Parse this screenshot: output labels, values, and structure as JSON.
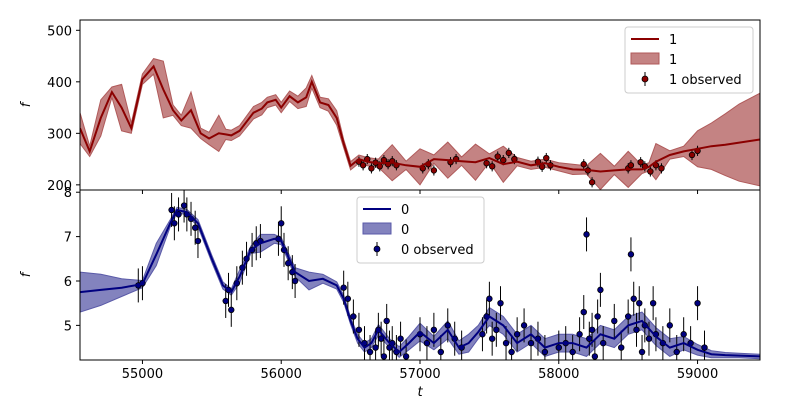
{
  "chart_data": [
    {
      "type": "line",
      "ylabel": "f",
      "xlim": [
        54550,
        59450
      ],
      "ylim": [
        190,
        520
      ],
      "yticks": [
        200,
        300,
        400,
        500
      ],
      "color": "#8b0000",
      "band_color": "#b05a5a",
      "legend": {
        "placement": "top-right",
        "entries": [
          {
            "kind": "line",
            "label": "1"
          },
          {
            "kind": "band",
            "label": "1"
          },
          {
            "kind": "points",
            "label": "1 observed"
          }
        ]
      },
      "model": {
        "x": [
          54550,
          54620,
          54700,
          54780,
          54850,
          54920,
          55000,
          55080,
          55150,
          55220,
          55280,
          55350,
          55420,
          55480,
          55550,
          55600,
          55640,
          55700,
          55800,
          55860,
          55900,
          55960,
          56000,
          56060,
          56120,
          56180,
          56220,
          56280,
          56340,
          56400,
          56450,
          56500,
          56560,
          56620,
          56700,
          56800,
          56900,
          57000,
          57100,
          57200,
          57300,
          57400,
          57500,
          57600,
          57700,
          57800,
          57900,
          58000,
          58100,
          58200,
          58300,
          58400,
          58500,
          58600,
          58650,
          58700,
          58800,
          58900,
          59000,
          59100,
          59200,
          59300,
          59450
        ],
        "y": [
          310,
          265,
          330,
          380,
          350,
          310,
          405,
          430,
          385,
          345,
          325,
          345,
          300,
          290,
          300,
          298,
          296,
          305,
          340,
          348,
          360,
          365,
          350,
          372,
          360,
          370,
          400,
          360,
          355,
          330,
          280,
          237,
          250,
          245,
          242,
          243,
          238,
          235,
          250,
          248,
          246,
          244,
          252,
          240,
          245,
          238,
          242,
          235,
          230,
          229,
          226,
          228,
          230,
          230,
          235,
          245,
          258,
          265,
          270,
          275,
          278,
          282,
          288
        ],
        "band_halfwidth": [
          30,
          10,
          35,
          10,
          45,
          10,
          10,
          15,
          55,
          10,
          10,
          35,
          10,
          12,
          35,
          10,
          10,
          10,
          12,
          12,
          10,
          10,
          10,
          10,
          12,
          18,
          12,
          10,
          12,
          14,
          8,
          8,
          8,
          8,
          8,
          35,
          8,
          35,
          8,
          35,
          8,
          35,
          8,
          35,
          8,
          8,
          8,
          8,
          10,
          8,
          35,
          8,
          35,
          8,
          8,
          35,
          8,
          10,
          35,
          45,
          60,
          75,
          90
        ]
      },
      "observed": {
        "x": [
          56560,
          56590,
          56620,
          56650,
          56680,
          56710,
          56740,
          56770,
          56800,
          56830,
          57020,
          57060,
          57100,
          57220,
          57260,
          57480,
          57520,
          57560,
          57600,
          57640,
          57680,
          57850,
          57880,
          57910,
          57940,
          58180,
          58210,
          58240,
          58500,
          58520,
          58590,
          58620,
          58660,
          58700,
          58740,
          58960,
          59000
        ],
        "y": [
          245,
          238,
          250,
          232,
          243,
          236,
          248,
          240,
          246,
          238,
          232,
          240,
          228,
          244,
          250,
          242,
          236,
          255,
          248,
          262,
          250,
          245,
          235,
          252,
          238,
          240,
          228,
          205,
          232,
          238,
          244,
          236,
          226,
          238,
          232,
          258,
          266
        ]
      }
    },
    {
      "type": "line",
      "ylabel": "f",
      "xlabel": "t",
      "xlim": [
        54550,
        59450
      ],
      "ylim": [
        4.22,
        8.05
      ],
      "yticks": [
        5,
        6,
        7,
        8
      ],
      "xticks": [
        55000,
        56000,
        57000,
        58000,
        59000
      ],
      "color": "#000080",
      "band_color": "#5a5aa8",
      "legend": {
        "placement": "top-center",
        "entries": [
          {
            "kind": "line",
            "label": "0"
          },
          {
            "kind": "band",
            "label": "0"
          },
          {
            "kind": "points",
            "label": "0 observed"
          }
        ]
      },
      "model": {
        "x": [
          54550,
          54700,
          54850,
          55000,
          55100,
          55200,
          55250,
          55320,
          55400,
          55500,
          55580,
          55640,
          55700,
          55780,
          55850,
          55950,
          56000,
          56100,
          56200,
          56300,
          56400,
          56450,
          56500,
          56550,
          56600,
          56650,
          56700,
          56780,
          56850,
          56920,
          57000,
          57100,
          57200,
          57280,
          57350,
          57420,
          57500,
          57600,
          57700,
          57800,
          57900,
          58000,
          58100,
          58200,
          58300,
          58400,
          58500,
          58600,
          58700,
          58800,
          58900,
          59000,
          59100,
          59200,
          59300,
          59450
        ],
        "y": [
          5.75,
          5.8,
          5.85,
          5.93,
          6.6,
          7.3,
          7.6,
          7.55,
          7.3,
          6.5,
          5.9,
          5.75,
          6.1,
          6.7,
          6.85,
          6.95,
          6.9,
          6.2,
          6.0,
          6.05,
          5.9,
          5.6,
          5.1,
          4.7,
          4.5,
          4.6,
          4.9,
          4.6,
          4.4,
          4.6,
          4.85,
          4.6,
          4.9,
          4.5,
          4.6,
          4.85,
          5.2,
          5.0,
          4.6,
          4.8,
          4.5,
          4.6,
          4.6,
          4.5,
          4.8,
          4.7,
          5.0,
          5.1,
          4.75,
          4.5,
          4.6,
          4.45,
          4.35,
          4.33,
          4.32,
          4.3
        ],
        "band_halfwidth": [
          0.45,
          0.35,
          0.2,
          0.08,
          0.25,
          0.08,
          0.06,
          0.06,
          0.08,
          0.08,
          0.08,
          0.07,
          0.15,
          0.08,
          0.2,
          0.1,
          0.08,
          0.1,
          0.2,
          0.1,
          0.08,
          0.08,
          0.08,
          0.1,
          0.1,
          0.1,
          0.12,
          0.1,
          0.12,
          0.15,
          0.2,
          0.15,
          0.2,
          0.15,
          0.2,
          0.15,
          0.2,
          0.2,
          0.2,
          0.2,
          0.2,
          0.2,
          0.2,
          0.2,
          0.2,
          0.2,
          0.2,
          0.2,
          0.2,
          0.2,
          0.15,
          0.12,
          0.08,
          0.06,
          0.05,
          0.05
        ],
        "observed": {
          "x": [
            54970,
            55000,
            55210,
            55230,
            55260,
            55300,
            55320,
            55350,
            55380,
            55400,
            55600,
            55620,
            55640,
            55680,
            55720,
            55750,
            55790,
            55820,
            55850,
            55980,
            56000,
            56020,
            56050,
            56080,
            56100,
            56450,
            56480,
            56520,
            56560,
            56600,
            56640,
            56680,
            56700,
            56720,
            56740,
            56760,
            56780,
            56800,
            56830,
            56860,
            56900,
            57000,
            57050,
            57100,
            57150,
            57200,
            57250,
            57300,
            57450,
            57480,
            57500,
            57520,
            57550,
            57580,
            57620,
            57660,
            57700,
            57750,
            57800,
            57850,
            57900,
            58000,
            58050,
            58100,
            58150,
            58180,
            58200,
            58220,
            58240,
            58260,
            58280,
            58300,
            58320,
            58400,
            58450,
            58500,
            58520,
            58540,
            58560,
            58580,
            58600,
            58620,
            58650,
            58680,
            58700,
            58750,
            58800,
            58850,
            58900,
            58950,
            59000,
            59050
          ],
          "y": [
            5.9,
            5.95,
            7.6,
            7.3,
            7.5,
            7.7,
            7.5,
            7.4,
            7.2,
            6.9,
            5.55,
            5.8,
            5.35,
            5.95,
            6.3,
            6.5,
            6.7,
            6.85,
            6.9,
            6.95,
            7.3,
            6.7,
            6.4,
            6.2,
            6.0,
            5.85,
            5.6,
            5.2,
            4.9,
            4.6,
            4.4,
            4.5,
            4.9,
            4.7,
            4.3,
            5.1,
            4.5,
            4.6,
            4.4,
            4.7,
            4.3,
            4.8,
            4.6,
            4.9,
            4.4,
            5.0,
            4.7,
            4.5,
            4.8,
            5.2,
            5.6,
            4.7,
            4.9,
            5.5,
            4.6,
            4.4,
            4.8,
            5.0,
            4.6,
            4.7,
            4.4,
            4.5,
            4.6,
            4.4,
            4.8,
            5.3,
            7.05,
            4.7,
            4.9,
            4.3,
            5.2,
            5.8,
            4.6,
            5.1,
            4.5,
            5.2,
            6.6,
            5.6,
            4.9,
            5.5,
            4.4,
            5.0,
            4.7,
            5.5,
            4.8,
            4.6,
            5.0,
            4.4,
            4.8,
            4.6,
            5.5,
            4.5
          ]
        }
      }
    }
  ]
}
